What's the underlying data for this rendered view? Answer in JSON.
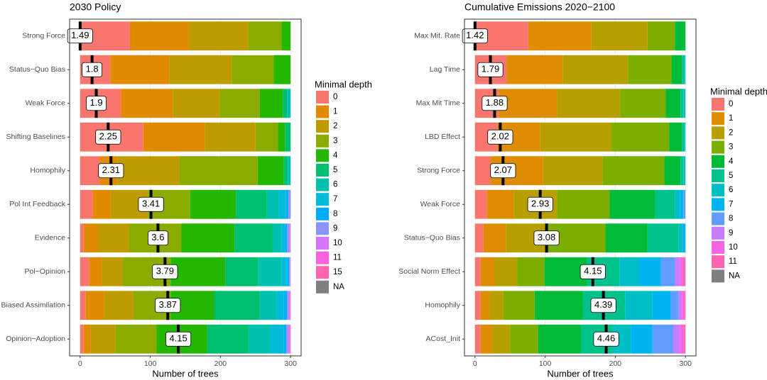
{
  "chart_data": [
    {
      "type": "bar",
      "orientation": "horizontal",
      "stacked": true,
      "title": "2030 Policy",
      "x_label": "Number of trees",
      "legend_title": "Minimal depth",
      "categories": [
        "Strong Force",
        "Status−Quo Bias",
        "Weak Force",
        "Shifting Baselines",
        "Homophily",
        "Pol Int Feedback",
        "Evidence",
        "Pol−Opinion",
        "Biased Assimilation",
        "Opinion−Adoption"
      ],
      "xlim": [
        -15,
        315
      ],
      "xticks": [
        0,
        100,
        200,
        300
      ],
      "grid": true,
      "mean_minimal_depth": [
        1.49,
        1.8,
        1.9,
        2.25,
        2.31,
        3.41,
        3.6,
        3.79,
        3.87,
        4.15
      ],
      "mean_marker_x": [
        0,
        17,
        23,
        40,
        44,
        101,
        111,
        121,
        125,
        140
      ],
      "series": [
        {
          "name": "0",
          "color": "#F8766D",
          "values": [
            71,
            43,
            58,
            90,
            28,
            18,
            5,
            13,
            8,
            5
          ]
        },
        {
          "name": "1",
          "color": "#E18A00",
          "values": [
            84,
            84,
            74,
            88,
            25,
            25,
            20,
            18,
            26,
            10
          ]
        },
        {
          "name": "2",
          "color": "#BE9C00",
          "values": [
            85,
            89,
            67,
            72,
            88,
            54,
            45,
            29,
            42,
            35
          ]
        },
        {
          "name": "3",
          "color": "#8CAB00",
          "values": [
            47,
            60,
            57,
            32,
            112,
            60,
            74,
            69,
            53,
            59
          ]
        },
        {
          "name": "4",
          "color": "#24B700",
          "values": [
            13,
            24,
            33,
            10,
            37,
            65,
            76,
            78,
            62,
            72
          ]
        },
        {
          "name": "5",
          "color": "#00BE70",
          "values": [
            0,
            0,
            6,
            8,
            6,
            44,
            54,
            47,
            65,
            59
          ]
        },
        {
          "name": "6",
          "color": "#00C1AB",
          "values": [
            0,
            0,
            5,
            0,
            4,
            17,
            13,
            33,
            24,
            31
          ]
        },
        {
          "name": "7",
          "color": "#00BBDA",
          "values": [
            0,
            0,
            0,
            0,
            0,
            10,
            5,
            8,
            10,
            19
          ]
        },
        {
          "name": "8",
          "color": "#00ACFC",
          "values": [
            0,
            0,
            0,
            0,
            0,
            4,
            3,
            3,
            5,
            4
          ]
        },
        {
          "name": "9",
          "color": "#8B93FF",
          "values": [
            0,
            0,
            0,
            0,
            0,
            3,
            3,
            1,
            2,
            2
          ]
        },
        {
          "name": "10",
          "color": "#D575FE",
          "values": [
            0,
            0,
            0,
            0,
            0,
            0,
            2,
            1,
            2,
            2
          ]
        },
        {
          "name": "11",
          "color": "#F962DD",
          "values": [
            0,
            0,
            0,
            0,
            0,
            0,
            0,
            0,
            1,
            1
          ]
        },
        {
          "name": "15",
          "color": "#FF65AC",
          "values": [
            0,
            0,
            0,
            0,
            0,
            0,
            0,
            0,
            0,
            1
          ]
        },
        {
          "name": "NA",
          "color": "#7F7F7F",
          "values": [
            0,
            0,
            0,
            0,
            0,
            0,
            0,
            0,
            0,
            0
          ]
        }
      ]
    },
    {
      "type": "bar",
      "orientation": "horizontal",
      "stacked": true,
      "title": "Cumulative Emissions 2020−2100",
      "x_label": "Number of trees",
      "legend_title": "Minimal depth",
      "categories": [
        "Max Mit. Rate",
        "Lag Time",
        "Max Mit Time",
        "LBD Effect",
        "Strong Force",
        "Weak Force",
        "Status−Quo Bias",
        "Social Norm Effect",
        "Homophily",
        "ACost_Init"
      ],
      "xlim": [
        -15,
        315
      ],
      "xticks": [
        0,
        100,
        200,
        300
      ],
      "grid": true,
      "mean_minimal_depth": [
        1.42,
        1.79,
        1.88,
        2.02,
        2.07,
        2.93,
        3.08,
        4.15,
        4.39,
        4.46
      ],
      "mean_marker_x": [
        0,
        22,
        28,
        36,
        40,
        93,
        102,
        168,
        183,
        187
      ],
      "series": [
        {
          "name": "0",
          "color": "#F8766D",
          "values": [
            76,
            45,
            34,
            32,
            22,
            17,
            12,
            8,
            8,
            8
          ]
        },
        {
          "name": "1",
          "color": "#DE8C00",
          "values": [
            90,
            80,
            83,
            61,
            75,
            38,
            32,
            20,
            13,
            16
          ]
        },
        {
          "name": "2",
          "color": "#B79F00",
          "values": [
            80,
            93,
            90,
            101,
            85,
            62,
            59,
            32,
            19,
            26
          ]
        },
        {
          "name": "3",
          "color": "#7CAE00",
          "values": [
            39,
            62,
            65,
            83,
            88,
            75,
            83,
            39,
            45,
            40
          ]
        },
        {
          "name": "4",
          "color": "#00BA38",
          "values": [
            15,
            15,
            21,
            18,
            23,
            65,
            60,
            61,
            69,
            61
          ]
        },
        {
          "name": "5",
          "color": "#00C08B",
          "values": [
            0,
            3,
            4,
            3,
            4,
            28,
            44,
            46,
            60,
            45
          ]
        },
        {
          "name": "6",
          "color": "#00BFC4",
          "values": [
            0,
            2,
            3,
            2,
            3,
            7,
            6,
            28,
            39,
            26
          ]
        },
        {
          "name": "7",
          "color": "#00B4F0",
          "values": [
            0,
            0,
            0,
            0,
            0,
            5,
            4,
            31,
            26,
            31
          ]
        },
        {
          "name": "8",
          "color": "#619CFF",
          "values": [
            0,
            0,
            0,
            0,
            0,
            3,
            0,
            20,
            11,
            30
          ]
        },
        {
          "name": "9",
          "color": "#C77CFF",
          "values": [
            0,
            0,
            0,
            0,
            0,
            0,
            0,
            7,
            5,
            9
          ]
        },
        {
          "name": "10",
          "color": "#F564E3",
          "values": [
            0,
            0,
            0,
            0,
            0,
            0,
            0,
            4,
            3,
            5
          ]
        },
        {
          "name": "11",
          "color": "#FF64B0",
          "values": [
            0,
            0,
            0,
            0,
            0,
            0,
            0,
            4,
            2,
            3
          ]
        },
        {
          "name": "NA",
          "color": "#7F7F7F",
          "values": [
            0,
            0,
            0,
            0,
            0,
            0,
            0,
            0,
            0,
            0
          ]
        }
      ]
    }
  ]
}
